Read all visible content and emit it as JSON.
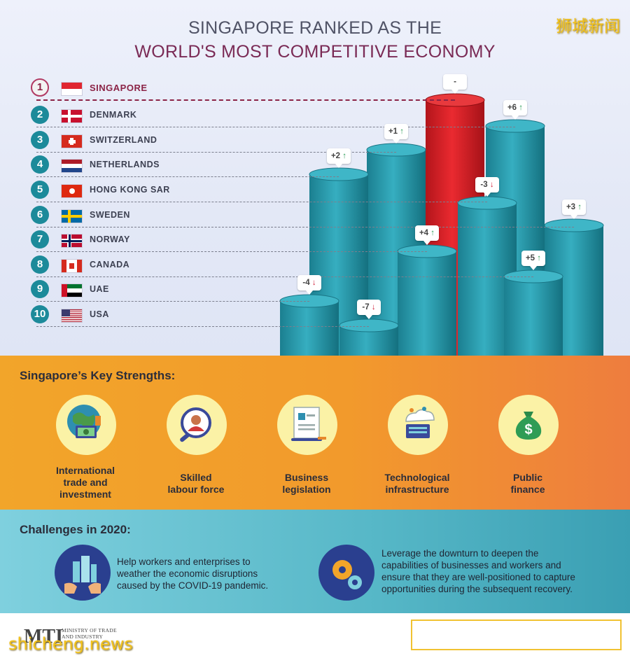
{
  "header": {
    "title_line1": "SINGAPORE RANKED AS THE",
    "title_line2": "WORLD'S MOST COMPETITIVE ECONOMY",
    "brand_cn": "狮城新闻"
  },
  "rankings": [
    {
      "rank": "1",
      "country": "SINGAPORE",
      "change": "-",
      "direction": "none"
    },
    {
      "rank": "2",
      "country": "DENMARK",
      "change": "+6",
      "direction": "up"
    },
    {
      "rank": "3",
      "country": "SWITZERLAND",
      "change": "+1",
      "direction": "up"
    },
    {
      "rank": "4",
      "country": "NETHERLANDS",
      "change": "+2",
      "direction": "up"
    },
    {
      "rank": "5",
      "country": "HONG KONG SAR",
      "change": "-3",
      "direction": "down"
    },
    {
      "rank": "6",
      "country": "SWEDEN",
      "change": "+3",
      "direction": "up"
    },
    {
      "rank": "7",
      "country": "NORWAY",
      "change": "+4",
      "direction": "up"
    },
    {
      "rank": "8",
      "country": "CANADA",
      "change": "+5",
      "direction": "up"
    },
    {
      "rank": "9",
      "country": "UAE",
      "change": "-4",
      "direction": "down"
    },
    {
      "rank": "10",
      "country": "USA",
      "change": "-7",
      "direction": "down"
    }
  ],
  "colors": {
    "rank1": "#8b2346",
    "teal": "#1c8a9a",
    "pillar": "#2a9fb0",
    "pillar_rank1": "#d81e24",
    "orange": "#f29a2c",
    "challenge_navy": "#2a3f8f"
  },
  "strengths": {
    "title": "Singapore’s Key Strengths:",
    "items": [
      {
        "label": "International\ntrade and\ninvestment",
        "icon": "globe-trade-icon"
      },
      {
        "label": "Skilled\nlabour force",
        "icon": "worker-magnifier-icon"
      },
      {
        "label": "Business\nlegislation",
        "icon": "document-pen-icon"
      },
      {
        "label": "Technological\ninfrastructure",
        "icon": "cloud-server-icon"
      },
      {
        "label": "Public\nfinance",
        "icon": "money-bag-icon"
      }
    ]
  },
  "challenges": {
    "title": "Challenges in 2020:",
    "items": [
      {
        "text": "Help workers and enterprises to\nweather the economic disruptions\ncaused by the COVID-19 pandemic.",
        "icon": "city-hands-icon"
      },
      {
        "text": "Leverage the downturn to deepen the\ncapabilities of businesses and workers and\nensure that they are well-positioned to capture\nopportunities during the subsequent recovery.",
        "icon": "gears-icon"
      }
    ]
  },
  "footer": {
    "logo": "MTI",
    "logo_sub": "MINISTRY OF TRADE\nAND INDUSTRY",
    "watermark": "shicheng.news"
  }
}
